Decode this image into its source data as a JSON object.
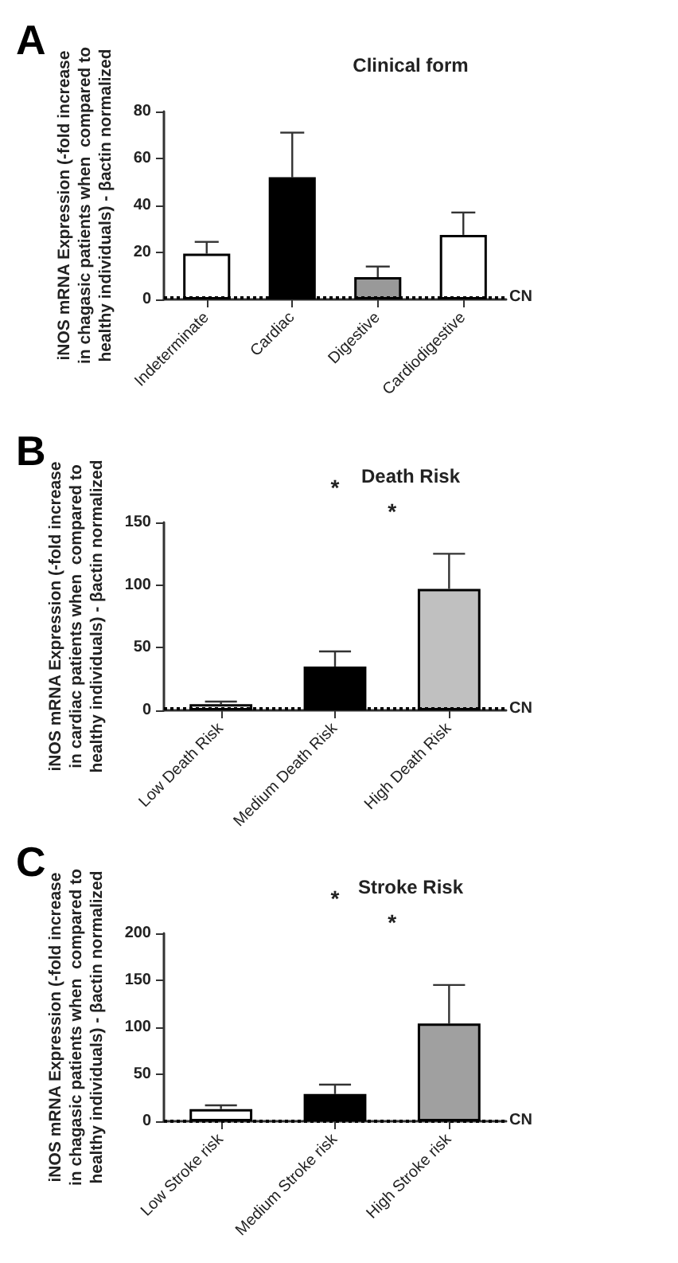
{
  "chart_data": [
    {
      "type": "bar",
      "title": "Clinical form",
      "ylabel": "iNOS mRNA Expression (-fold increase\nin chagasic patients when  compared to\nhealthy individuals) - βactin normalized",
      "annotations": [
        "A"
      ],
      "categories": [
        "Indeterminate",
        "Cardiac",
        "Digestive",
        "Cardiodigestive"
      ],
      "values": [
        19.5,
        52,
        9.5,
        27.5
      ],
      "errors": [
        [
          19.5,
          24.5
        ],
        [
          52,
          71
        ],
        [
          9.5,
          14
        ],
        [
          27.5,
          37
        ]
      ],
      "colors": [
        "#ffffff",
        "#000000",
        "#999999",
        "#ffffff"
      ],
      "ylim": [
        0,
        80
      ],
      "yticks": [
        0,
        20,
        40,
        60,
        80
      ],
      "ref_lines": [
        {
          "axis": "y",
          "value": 1,
          "label": "CN",
          "line_style": "dotted",
          "color": "#000000"
        }
      ],
      "grid": false
    },
    {
      "type": "bar",
      "title": "Death Risk",
      "ylabel": "iNOS mRNA Expression (-fold increase\nin cardiac patients when  compared to\nhealthy individuals) - βactin normalized",
      "annotations": [
        "B",
        "*",
        "*"
      ],
      "categories": [
        "Low Death Risk",
        "Medium Death Risk",
        "High Death Risk"
      ],
      "values": [
        5,
        35,
        97
      ],
      "errors": [
        [
          5,
          7
        ],
        [
          35,
          47
        ],
        [
          97,
          125
        ]
      ],
      "colors": [
        "#ffffff",
        "#000000",
        "#c0c0c0"
      ],
      "ylim": [
        0,
        150
      ],
      "yticks": [
        0,
        50,
        100,
        150
      ],
      "ref_lines": [
        {
          "axis": "y",
          "value": 1,
          "label": "CN",
          "line_style": "dotted",
          "color": "#000000"
        }
      ],
      "grid": false
    },
    {
      "type": "bar",
      "title": "Stroke Risk",
      "ylabel": "iNOS mRNA Expression (-fold increase\nin chagasic patients when  compared to\nhealthy individuals) - βactin normalized",
      "annotations": [
        "C",
        "*",
        "*"
      ],
      "categories": [
        "Low Stroke risk",
        "Medium Stroke risk",
        "High Stroke risk"
      ],
      "values": [
        13,
        29,
        104
      ],
      "errors": [
        [
          13,
          17
        ],
        [
          29,
          39
        ],
        [
          104,
          145
        ]
      ],
      "colors": [
        "#ffffff",
        "#000000",
        "#a0a0a0"
      ],
      "ylim": [
        0,
        200
      ],
      "yticks": [
        0,
        50,
        100,
        150,
        200
      ],
      "ref_lines": [
        {
          "axis": "y",
          "value": 1,
          "label": "CN",
          "line_style": "dotted",
          "color": "#000000"
        }
      ],
      "grid": false
    }
  ]
}
